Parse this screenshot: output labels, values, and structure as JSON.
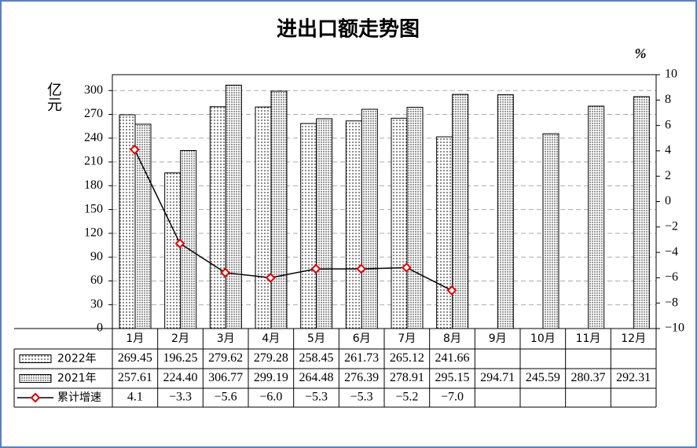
{
  "chart_data": {
    "type": "bar-line",
    "title": "进出口额走势图",
    "y_label": "亿元",
    "y2_label": "%",
    "categories": [
      "1月",
      "2月",
      "3月",
      "4月",
      "5月",
      "6月",
      "7月",
      "8月",
      "9月",
      "10月",
      "11月",
      "12月"
    ],
    "series": [
      {
        "name": "2022年",
        "type": "bar",
        "color": "#000000",
        "values": [
          269.45,
          196.25,
          279.62,
          279.28,
          258.45,
          261.73,
          265.12,
          241.66,
          null,
          null,
          null,
          null
        ],
        "value_labels": [
          "269.45",
          "196.25",
          "279.62",
          "279.28",
          "258.45",
          "261.73",
          "265.12",
          "241.66",
          null,
          null,
          null,
          null
        ]
      },
      {
        "name": "2021年",
        "type": "bar",
        "color": "#000000",
        "values": [
          257.61,
          224.4,
          306.77,
          299.19,
          264.48,
          276.39,
          278.91,
          295.15,
          294.71,
          245.59,
          280.37,
          292.31
        ],
        "value_labels": [
          "257.61",
          "224.40",
          "306.77",
          "299.19",
          "264.48",
          "276.39",
          "278.91",
          "295.15",
          "294.71",
          "245.59",
          "280.37",
          "292.31"
        ]
      },
      {
        "name": "累计增速",
        "type": "line",
        "axis": "y2",
        "color": "#e00000",
        "values": [
          4.1,
          -3.3,
          -5.6,
          -6.0,
          -5.3,
          -5.3,
          -5.2,
          -7.0,
          null,
          null,
          null,
          null
        ],
        "value_labels": [
          "4.1",
          "−3.3",
          "−5.6",
          "−6.0",
          "−5.3",
          "−5.3",
          "−5.2",
          "−7.0",
          null,
          null,
          null,
          null
        ]
      }
    ],
    "ylim": [
      0,
      320
    ],
    "yticks": [
      0,
      30,
      60,
      90,
      120,
      150,
      180,
      210,
      240,
      270,
      300
    ],
    "y2lim": [
      -10,
      10
    ],
    "y2ticks": [
      {
        "value": -10,
        "label": "−10"
      },
      {
        "value": -8,
        "label": "−8"
      },
      {
        "value": -6,
        "label": "−6"
      },
      {
        "value": -4,
        "label": "−4"
      },
      {
        "value": -2,
        "label": "−2"
      },
      0,
      2,
      4,
      6,
      8,
      10
    ],
    "grid": true
  }
}
